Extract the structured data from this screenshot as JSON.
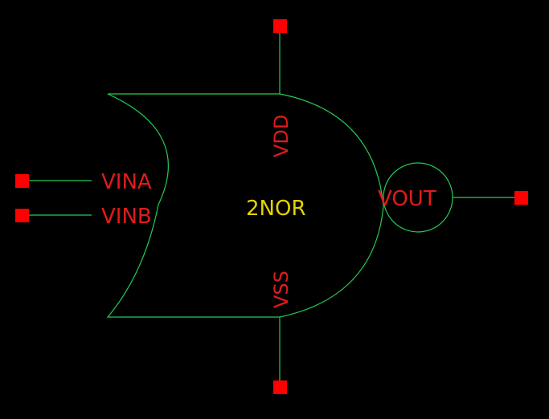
{
  "symbol": {
    "cell_name": "2NOR",
    "pins": {
      "vdd": "VDD",
      "vss": "VSS",
      "vina": "VINA",
      "vinb": "VINB",
      "vout": "VOUT"
    }
  },
  "colors": {
    "background": "#000000",
    "outline": "#22cc55",
    "pin_square": "#ff0000",
    "pin_label": "#e11b1b",
    "cell_label": "#e6d200"
  }
}
